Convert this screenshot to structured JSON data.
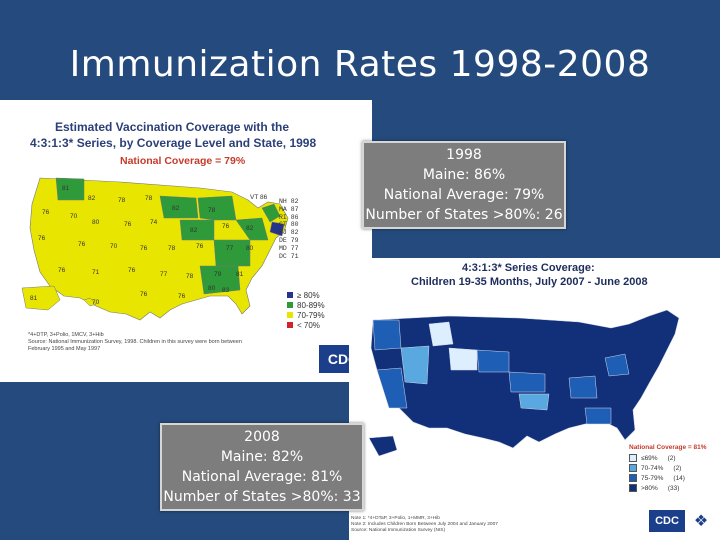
{
  "slide": {
    "title": "Immunization Rates 1998-2008"
  },
  "map_1998": {
    "title_line1": "Estimated Vaccination Coverage with the",
    "title_line2": "4:3:1:3* Series, by Coverage Level and State, 1998",
    "national_coverage": "National Coverage = 79%",
    "vt_label": "VT 86",
    "northeast": [
      "NH 82",
      "MA 87",
      "RI 86",
      "CT 80",
      "NJ 82",
      "DE 79",
      "MD 77",
      "DC 71"
    ],
    "legend": [
      {
        "label": "≥ 80%",
        "color": "#27348b"
      },
      {
        "label": "80-89%",
        "color": "#2e9a3a"
      },
      {
        "label": "70-79%",
        "color": "#e8e600"
      },
      {
        "label": "< 70%",
        "color": "#d2232a"
      }
    ],
    "footnote_line1": "*4+DTP, 3+Polio, 1MCV, 3+Hib",
    "footnote_line2": "Source: National Immunization Survey, 1998. Children in this survey were born between",
    "footnote_line3": "February 1995 and May 1997",
    "logo": "CDC",
    "colors": {
      "high": "#2e9a3a",
      "mid": "#e8e600",
      "top": "#27348b"
    }
  },
  "callout_1998": {
    "year": "1998",
    "maine": "Maine: 86%",
    "national": "National Average: 79%",
    "states": "Number of States >80%: 26"
  },
  "map_2008": {
    "title_line1": "4:3:1:3* Series Coverage:",
    "title_line2": "Children 19-35 Months, July 2007 - June 2008",
    "legend_title": "National Coverage = 81%",
    "legend": [
      {
        "label": "≤69%",
        "count": "(2)",
        "color": "#ddeeff"
      },
      {
        "label": "70-74%",
        "count": "(2)",
        "color": "#5aa8e0"
      },
      {
        "label": "75-79%",
        "count": "(14)",
        "color": "#1e5fb5"
      },
      {
        "label": ">80%",
        "count": "(33)",
        "color": "#122f7a"
      }
    ],
    "footnote_line1": "Note 1: *4+DTaP, 3+Polio, 1+MMR, 3+Hib",
    "footnote_line2": "Note 2: Includes Children Born Between July 2004 and January 2007",
    "footnote_line3": "Source: National Immunization Survey (NIS)",
    "logo": "CDC",
    "colors": {
      "dark": "#122f7a",
      "mid": "#1e5fb5",
      "light": "#5aa8e0",
      "pale": "#ddeeff"
    }
  },
  "callout_2008": {
    "year": "2008",
    "maine": "Maine: 82%",
    "national": "National Average: 81%",
    "states": "Number of States >80%: 33"
  }
}
